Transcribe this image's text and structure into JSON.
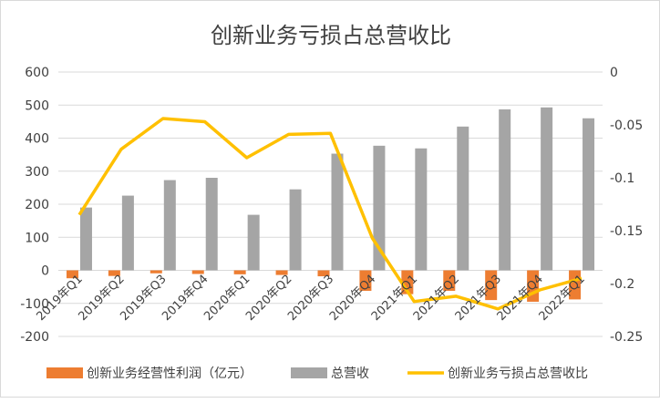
{
  "chart_data": {
    "type": "bar",
    "title": "创新业务亏损占总营收比",
    "categories": [
      "2019年Q1",
      "2019年Q2",
      "2019年Q3",
      "2019年Q4",
      "2020年Q1",
      "2020年Q2",
      "2020年Q3",
      "2020年Q4",
      "2021年Q1",
      "2021年Q2",
      "2021年Q3",
      "2021年Q4",
      "2022年Q1"
    ],
    "series": [
      {
        "name": "创新业务经营性利润（亿元）",
        "type": "bar",
        "axis": "left",
        "color": "#ED7D31",
        "values": [
          -24,
          -17,
          -9,
          -11,
          -12,
          -14,
          -18,
          -62,
          -72,
          -62,
          -90,
          -95,
          -88
        ]
      },
      {
        "name": "总营收",
        "type": "bar",
        "axis": "left",
        "color": "#A5A5A5",
        "values": [
          190,
          226,
          273,
          280,
          168,
          245,
          353,
          377,
          369,
          435,
          487,
          493,
          460
        ]
      },
      {
        "name": "创新业务亏损占总营收比",
        "type": "line",
        "axis": "right",
        "color": "#FFC000",
        "values": [
          -0.135,
          -0.073,
          -0.044,
          -0.047,
          -0.081,
          -0.059,
          -0.058,
          -0.157,
          -0.217,
          -0.212,
          -0.224,
          -0.206,
          -0.195
        ]
      }
    ],
    "y_left": {
      "min": -200,
      "max": 600,
      "ticks": [
        -200,
        -100,
        0,
        100,
        200,
        300,
        400,
        500,
        600
      ]
    },
    "y_right": {
      "min": -0.25,
      "max": 0,
      "ticks": [
        0,
        -0.05,
        -0.1,
        -0.15,
        -0.2,
        -0.25
      ]
    },
    "grid": true,
    "legend_position": "bottom"
  }
}
